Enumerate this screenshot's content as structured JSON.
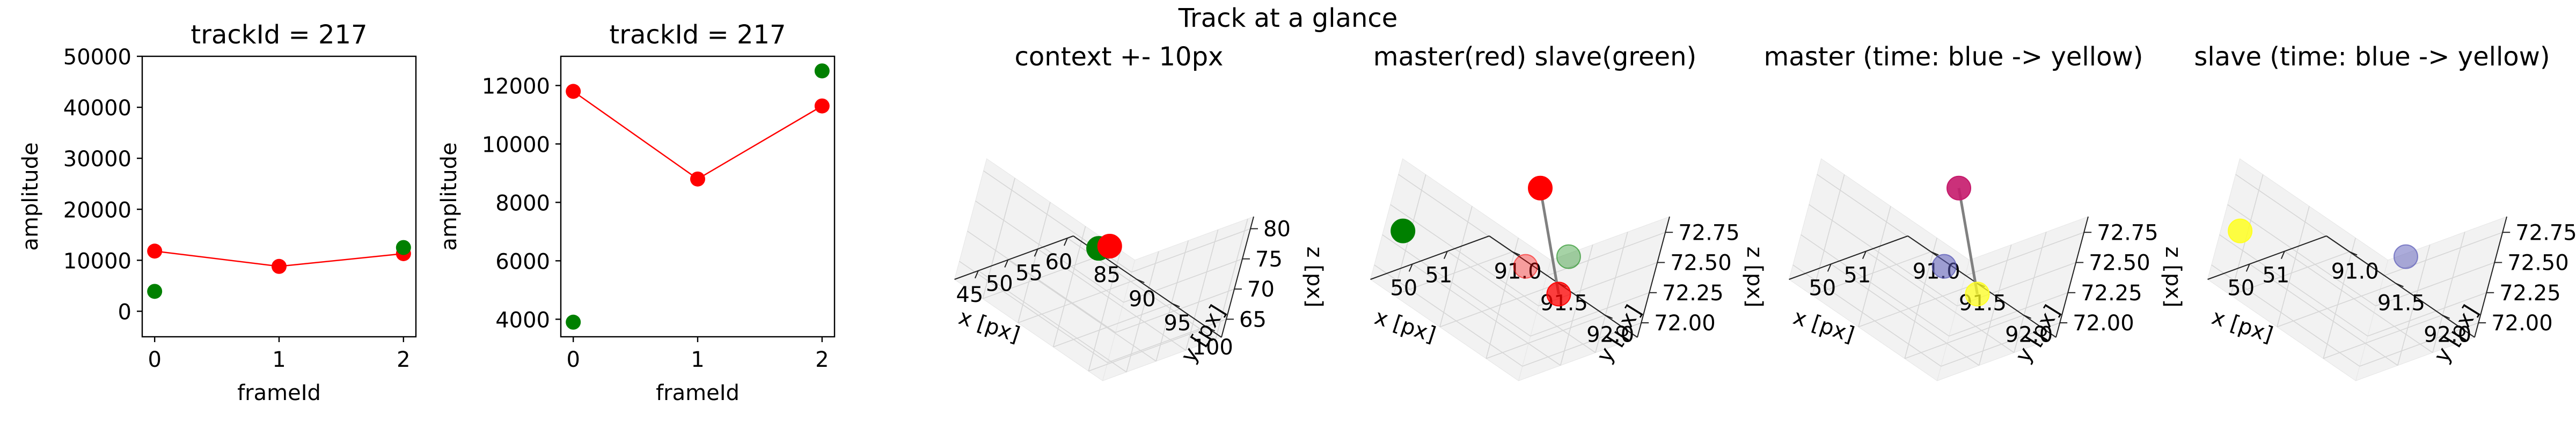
{
  "suptitle": "Track at a glance",
  "colors": {
    "master": "#ff0000",
    "slave": "#008000",
    "pane": "#f2f2f2",
    "pane_grid": "#d6d6d6",
    "track_line": "#808080",
    "time_start": "#5a5ab8",
    "time_end": "#ffff22"
  },
  "chart_data": [
    {
      "type": "line",
      "title": "trackId = 217",
      "xlabel": "frameId",
      "ylabel": "amplitude",
      "xlim": [
        -0.1,
        2.1
      ],
      "ylim": [
        -5000,
        50000
      ],
      "xticks": [
        0,
        1,
        2
      ],
      "yticks": [
        0,
        10000,
        20000,
        30000,
        40000,
        50000
      ],
      "series": [
        {
          "role": "master",
          "color": "#ff0000",
          "style": "line+markers",
          "x": [
            0,
            1,
            2
          ],
          "y": [
            11800,
            8800,
            11300
          ]
        },
        {
          "role": "slave",
          "color": "#008000",
          "style": "markers",
          "x": [
            0,
            2
          ],
          "y": [
            3900,
            12500
          ]
        }
      ]
    },
    {
      "type": "line",
      "title": "trackId = 217",
      "xlabel": "frameId",
      "ylabel": "amplitude",
      "xlim": [
        -0.1,
        2.1
      ],
      "ylim": [
        3400,
        13000
      ],
      "xticks": [
        0,
        1,
        2
      ],
      "yticks": [
        4000,
        6000,
        8000,
        10000,
        12000
      ],
      "series": [
        {
          "role": "master",
          "color": "#ff0000",
          "style": "line+markers",
          "x": [
            0,
            1,
            2
          ],
          "y": [
            11800,
            8800,
            11300
          ]
        },
        {
          "role": "slave",
          "color": "#008000",
          "style": "markers",
          "x": [
            0,
            2
          ],
          "y": [
            3900,
            12500
          ]
        }
      ]
    },
    {
      "type": "scatter",
      "projection": "3d",
      "title": "context +- 10px",
      "xlabel": "x [px]",
      "ylabel": "y [px]",
      "zlabel": "z [px]",
      "xlim": [
        41,
        61
      ],
      "ylim": [
        81,
        102
      ],
      "zlim": [
        62,
        82
      ],
      "xticks": [
        45,
        50,
        55,
        60
      ],
      "yticks": [
        85,
        90,
        95,
        100
      ],
      "zticks": [
        65,
        70,
        75,
        80
      ],
      "points": [
        {
          "x": 50.0,
          "y": 91.5,
          "z": 72.3,
          "color": "#008000",
          "alpha": 1.0
        },
        {
          "x": 51.8,
          "y": 91.6,
          "z": 72.1,
          "color": "#ff0000",
          "alpha": 1.0
        }
      ]
    },
    {
      "type": "scatter",
      "projection": "3d",
      "title": "master(red) slave(green)",
      "xlabel": "x [px]",
      "ylabel": "y [px]",
      "zlabel": "z [px]",
      "xlim": [
        48.8,
        52.2
      ],
      "ylim": [
        90.75,
        92.35
      ],
      "zlim": [
        71.88,
        72.88
      ],
      "xticks": [
        50,
        51
      ],
      "yticks": [
        91.0,
        91.5,
        92.0
      ],
      "zticks": [
        72.0,
        72.25,
        72.5,
        72.75
      ],
      "lines": [
        {
          "color": "#808080",
          "points": [
            {
              "x": 51.85,
              "y": 91.2,
              "z": 72.55
            },
            {
              "x": 51.25,
              "y": 91.8,
              "z": 72.05
            }
          ]
        }
      ],
      "points": [
        {
          "x": 48.9,
          "y": 90.9,
          "z": 72.35,
          "color": "#008000",
          "alpha": 1.0
        },
        {
          "x": 50.9,
          "y": 91.9,
          "z": 72.45,
          "color": "#008000",
          "alpha": 0.35
        },
        {
          "x": 51.85,
          "y": 91.2,
          "z": 72.55,
          "color": "#ff0000",
          "alpha": 1.0
        },
        {
          "x": 51.25,
          "y": 91.8,
          "z": 72.05,
          "color": "#ff0000",
          "alpha": 0.75
        },
        {
          "x": 51.7,
          "y": 91.3,
          "z": 71.97,
          "color": "#ff0000",
          "alpha": 0.35
        }
      ]
    },
    {
      "type": "scatter",
      "projection": "3d",
      "title": "master (time: blue -> yellow)",
      "xlabel": "x [px]",
      "ylabel": "y [px]",
      "zlabel": "z [px]",
      "xlim": [
        48.8,
        52.2
      ],
      "ylim": [
        90.75,
        92.35
      ],
      "zlim": [
        71.88,
        72.88
      ],
      "xticks": [
        50,
        51
      ],
      "yticks": [
        91.0,
        91.5,
        92.0
      ],
      "zticks": [
        72.0,
        72.25,
        72.5,
        72.75
      ],
      "lines": [
        {
          "color": "#808080",
          "points": [
            {
              "x": 51.85,
              "y": 91.2,
              "z": 72.55
            },
            {
              "x": 51.25,
              "y": 91.8,
              "z": 72.05
            }
          ]
        }
      ],
      "points": [
        {
          "x": 51.7,
          "y": 91.3,
          "z": 71.97,
          "color": "#5a5ab8",
          "alpha": 0.55
        },
        {
          "x": 51.85,
          "y": 91.2,
          "z": 72.55,
          "color": "#c51a6b",
          "alpha": 0.9
        },
        {
          "x": 51.25,
          "y": 91.8,
          "z": 72.05,
          "color": "#ffff22",
          "alpha": 0.75
        }
      ]
    },
    {
      "type": "scatter",
      "projection": "3d",
      "title": "slave (time: blue -> yellow)",
      "xlabel": "x [px]",
      "ylabel": "y [px]",
      "zlabel": "z [px]",
      "xlim": [
        48.8,
        52.2
      ],
      "ylim": [
        90.75,
        92.35
      ],
      "zlim": [
        71.88,
        72.88
      ],
      "xticks": [
        50,
        51
      ],
      "yticks": [
        91.0,
        91.5,
        92.0
      ],
      "zticks": [
        72.0,
        72.25,
        72.5,
        72.75
      ],
      "points": [
        {
          "x": 48.9,
          "y": 90.9,
          "z": 72.35,
          "color": "#ffff22",
          "alpha": 0.85
        },
        {
          "x": 50.9,
          "y": 91.9,
          "z": 72.45,
          "color": "#5a5ab8",
          "alpha": 0.5
        }
      ]
    }
  ]
}
